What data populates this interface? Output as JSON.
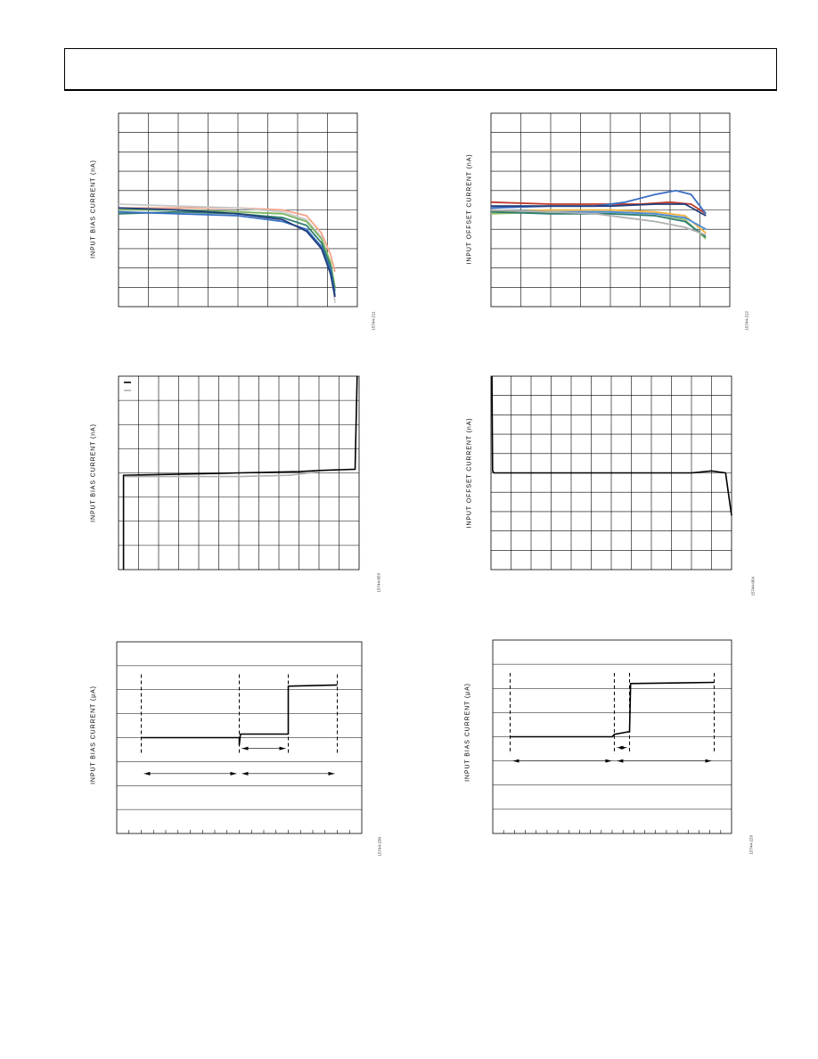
{
  "chart_data": [
    {
      "id": "c1",
      "type": "line",
      "ylabel": "INPUT BIAS CURRENT (nA)",
      "fig_id": "15744-211",
      "xlim": [
        0,
        8
      ],
      "ylim": [
        -5,
        5
      ],
      "grid": true,
      "series": [
        {
          "color": "#f4a38a",
          "x": [
            0,
            2,
            4,
            5.5,
            6.3,
            6.8,
            7.1,
            7.25
          ],
          "y": [
            0.1,
            0.1,
            0.1,
            0.0,
            -0.3,
            -1.2,
            -2.3,
            -3.2
          ]
        },
        {
          "color": "#c8c8c8",
          "x": [
            0,
            2,
            4,
            5.5,
            6.3,
            6.8,
            7.1,
            7.25
          ],
          "y": [
            0.3,
            0.2,
            0.1,
            -0.1,
            -0.5,
            -1.4,
            -2.8,
            -4.8
          ]
        },
        {
          "color": "#7bb661",
          "x": [
            0,
            2,
            4,
            5.5,
            6.3,
            6.8,
            7.1,
            7.25
          ],
          "y": [
            0.0,
            0.0,
            -0.1,
            -0.2,
            -0.6,
            -1.5,
            -2.7,
            -4.0
          ]
        },
        {
          "color": "#2e7d6e",
          "x": [
            0,
            2,
            4,
            5.5,
            6.3,
            6.8,
            7.1,
            7.25
          ],
          "y": [
            -0.2,
            -0.1,
            -0.2,
            -0.4,
            -0.8,
            -1.7,
            -2.9,
            -4.2
          ]
        },
        {
          "color": "#3a6fc4",
          "x": [
            0,
            2,
            4,
            5.5,
            6.3,
            6.8,
            7.1,
            7.25
          ],
          "y": [
            -0.1,
            -0.2,
            -0.3,
            -0.6,
            -1.0,
            -1.9,
            -3.1,
            -4.4
          ]
        },
        {
          "color": "#1f3d7a",
          "x": [
            0,
            2,
            4,
            5.5,
            6.3,
            6.8,
            7.1,
            7.25
          ],
          "y": [
            0.1,
            0.0,
            -0.2,
            -0.5,
            -1.1,
            -2.0,
            -3.3,
            -4.5
          ]
        }
      ]
    },
    {
      "id": "c2",
      "type": "line",
      "ylabel": "INPUT OFFSET CURRENT (nA)",
      "fig_id": "15744-212",
      "xlim": [
        0,
        8
      ],
      "ylim": [
        -5,
        5
      ],
      "grid": true,
      "series": [
        {
          "color": "#c0392b",
          "x": [
            0,
            2,
            4,
            5,
            6,
            6.7,
            7.2
          ],
          "y": [
            0.4,
            0.3,
            0.3,
            0.3,
            0.4,
            0.3,
            -0.2
          ]
        },
        {
          "color": "#3a6fc4",
          "x": [
            0,
            2,
            3.5,
            4.5,
            5.5,
            6.2,
            6.7,
            7.2
          ],
          "y": [
            0.1,
            0.2,
            0.2,
            0.4,
            0.8,
            1.0,
            0.8,
            -0.2
          ]
        },
        {
          "color": "#1f3d7a",
          "x": [
            0,
            2,
            4,
            5.5,
            6.5,
            7.2
          ],
          "y": [
            0.2,
            0.2,
            0.2,
            0.3,
            0.3,
            -0.3
          ]
        },
        {
          "color": "#f0b43c",
          "x": [
            0,
            2,
            4,
            5.5,
            6.5,
            7.2
          ],
          "y": [
            -0.1,
            0.0,
            0.0,
            -0.1,
            -0.3,
            -1.2
          ]
        },
        {
          "color": "#8fbf6b",
          "x": [
            0,
            2,
            4,
            5.5,
            6.5,
            7.2
          ],
          "y": [
            -0.2,
            -0.1,
            -0.1,
            -0.2,
            -0.5,
            -1.5
          ]
        },
        {
          "color": "#2e7d6e",
          "x": [
            0,
            2,
            4,
            5.5,
            6.5,
            7.2
          ],
          "y": [
            -0.1,
            -0.2,
            -0.2,
            -0.3,
            -0.6,
            -1.4
          ]
        },
        {
          "color": "#4f8ad8",
          "x": [
            0,
            2,
            4,
            5.5,
            6.5,
            7.2
          ],
          "y": [
            0.0,
            -0.1,
            -0.1,
            -0.2,
            -0.4,
            -1.0
          ]
        },
        {
          "color": "#b0b0b0",
          "x": [
            0,
            2,
            3.5,
            4.5,
            5.5,
            6.5,
            7.2
          ],
          "y": [
            0.0,
            -0.1,
            -0.2,
            -0.4,
            -0.6,
            -0.9,
            -1.3
          ]
        }
      ]
    },
    {
      "id": "c3",
      "type": "line",
      "ylabel": "INPUT BIAS CURRENT (nA)",
      "fig_id": "15744-053",
      "xlim": [
        0,
        12
      ],
      "ylim": [
        -4,
        4
      ],
      "grid": true,
      "legend": {
        "position": "top-left",
        "entries": [
          {
            "color": "#000000"
          },
          {
            "color": "#b0b0b0"
          }
        ]
      },
      "series": [
        {
          "color": "#000000",
          "x": [
            0.25,
            0.25,
            0.3,
            3,
            6,
            9,
            10,
            11.8,
            11.8,
            11.9
          ],
          "y": [
            -4,
            -0.1,
            -0.1,
            -0.05,
            0,
            0.05,
            0.1,
            0.15,
            0.15,
            4
          ]
        },
        {
          "color": "#b0b0b0",
          "x": [
            0.3,
            3,
            6,
            8.5,
            9,
            10
          ],
          "y": [
            -0.15,
            -0.15,
            -0.15,
            -0.1,
            -0.05,
            0.05
          ]
        }
      ]
    },
    {
      "id": "c4",
      "type": "line",
      "ylabel": "INPUT OFFSET CURRENT (nA)",
      "fig_id": "15744-054",
      "xlim": [
        0,
        12
      ],
      "ylim": [
        -5,
        5
      ],
      "grid": true,
      "series": [
        {
          "color": "#000000",
          "x": [
            0.05,
            0.08,
            0.15,
            3,
            6,
            9,
            10,
            11,
            11.7,
            11.9,
            12
          ],
          "y": [
            5,
            0.1,
            0,
            0,
            0,
            0,
            0,
            0.1,
            0,
            -1.5,
            -2.2
          ]
        }
      ]
    },
    {
      "id": "c5",
      "type": "line",
      "ylabel": "INPUT BIAS CURRENT (µA)",
      "fig_id": "15744-230",
      "xlim": [
        0,
        10
      ],
      "ylim": [
        -4,
        4
      ],
      "grid": true,
      "grid_axis": "y",
      "markers": [
        1,
        5,
        7,
        9
      ],
      "series": [
        {
          "color": "#000000",
          "x": [
            1,
            5,
            5,
            5.05,
            7,
            7,
            7.1,
            9
          ],
          "y": [
            0,
            0,
            -0.3,
            0.15,
            0.15,
            2.15,
            2.15,
            2.2
          ]
        }
      ],
      "arrows": [
        {
          "y": -0.45,
          "x1": 5,
          "x2": 7
        },
        {
          "y": -1.5,
          "x1": 1,
          "x2": 5
        },
        {
          "y": -1.5,
          "x1": 5,
          "x2": 9
        }
      ]
    },
    {
      "id": "c6",
      "type": "line",
      "ylabel": "INPUT BIAS CURRENT (µA)",
      "fig_id": "15744-229",
      "xlim": [
        0,
        11
      ],
      "ylim": [
        -4,
        4
      ],
      "grid": true,
      "grid_axis": "y",
      "markers": [
        0.8,
        5.6,
        6.3,
        10.2
      ],
      "series": [
        {
          "color": "#000000",
          "x": [
            0.8,
            5.5,
            5.6,
            6.2,
            6.3,
            6.35,
            10.2
          ],
          "y": [
            0,
            0,
            0.1,
            0.2,
            0.2,
            2.2,
            2.25
          ]
        }
      ],
      "arrows": [
        {
          "y": -0.45,
          "x1": 5.6,
          "x2": 6.3
        },
        {
          "y": -1.0,
          "x1": 0.8,
          "x2": 5.6
        },
        {
          "y": -1.0,
          "x1": 5.6,
          "x2": 10.2
        }
      ]
    }
  ]
}
